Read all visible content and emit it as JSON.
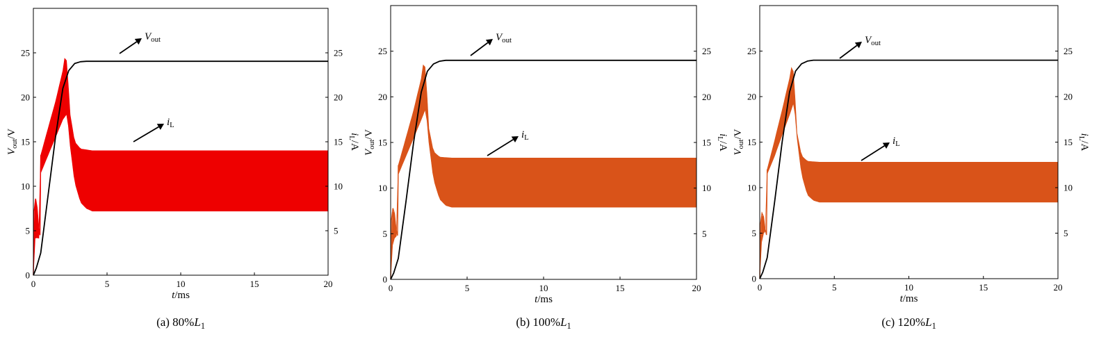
{
  "chart_data": [
    {
      "type": "line",
      "caption": {
        "prefix": "(a) 80%",
        "var": "L",
        "sub": "1"
      },
      "xlabel": {
        "var": "t",
        "unit": "/ms"
      },
      "ylabel_left": {
        "var": "V",
        "sub": "out",
        "unit": "/V"
      },
      "ylabel_right": {
        "var": "i",
        "sub": "L",
        "unit": "/A"
      },
      "xlim": [
        0,
        20
      ],
      "ylim_left": [
        0,
        30
      ],
      "ylim_right": [
        0,
        30
      ],
      "xticks": [
        "0",
        "5",
        "10",
        "15",
        "20"
      ],
      "yticks_left": [
        "0",
        "5",
        "10",
        "15",
        "20",
        "25"
      ],
      "yticks_right": [
        "5",
        "10",
        "15",
        "20",
        "25"
      ],
      "colors": {
        "vout": "#000000",
        "il": "#ee0000"
      },
      "annotations": [
        {
          "var": "V",
          "sub": "out"
        },
        {
          "var": "i",
          "sub": "L"
        }
      ],
      "series": [
        {
          "name": "Vout",
          "x": [
            0,
            0.2,
            0.5,
            1,
            1.5,
            2,
            2.4,
            2.8,
            3.2,
            3.6,
            4,
            20
          ],
          "y": [
            0,
            0.8,
            2.5,
            9,
            15.5,
            21,
            23,
            23.8,
            24,
            24.05,
            24.05,
            24.05
          ]
        },
        {
          "name": "iL_max",
          "x": [
            0,
            0.05,
            0.15,
            0.25,
            0.35,
            0.45,
            0.5,
            1,
            1.5,
            2,
            2.2,
            2.35,
            2.5,
            2.8,
            3.2,
            4,
            20
          ],
          "y": [
            0,
            7.2,
            8.6,
            7.6,
            5.5,
            4.5,
            13.5,
            16.5,
            19.5,
            23,
            25.2,
            22,
            18,
            15,
            14.2,
            14,
            14
          ]
        },
        {
          "name": "iL_min",
          "x": [
            0,
            0.15,
            0.3,
            0.45,
            0.5,
            1,
            1.5,
            2,
            2.3,
            2.5,
            2.8,
            3.2,
            3.6,
            4,
            20
          ],
          "y": [
            0,
            5,
            3.8,
            4.5,
            11.5,
            13.5,
            15.5,
            17.5,
            18.2,
            14.5,
            10.5,
            8.2,
            7.5,
            7.2,
            7.2
          ]
        }
      ]
    },
    {
      "type": "line",
      "caption": {
        "prefix": "(b) 100%",
        "var": "L",
        "sub": "1"
      },
      "xlabel": {
        "var": "t",
        "unit": "/ms"
      },
      "ylabel_left": {
        "var": "V",
        "sub": "out",
        "unit": "/V"
      },
      "ylabel_right": {
        "var": "i",
        "sub": "L",
        "unit": "/A"
      },
      "xlim": [
        0,
        20
      ],
      "ylim_left": [
        0,
        30
      ],
      "ylim_right": [
        0,
        30
      ],
      "xticks": [
        "0",
        "5",
        "10",
        "15",
        "20"
      ],
      "yticks_left": [
        "0",
        "5",
        "10",
        "15",
        "20",
        "25"
      ],
      "yticks_right": [
        "5",
        "10",
        "15",
        "20",
        "25"
      ],
      "colors": {
        "vout": "#000000",
        "il": "#d95319"
      },
      "annotations": [
        {
          "var": "V",
          "sub": "out"
        },
        {
          "var": "i",
          "sub": "L"
        }
      ],
      "series": [
        {
          "name": "Vout",
          "x": [
            0,
            0.2,
            0.5,
            1,
            1.5,
            2,
            2.4,
            2.8,
            3.2,
            3.6,
            4,
            20
          ],
          "y": [
            0,
            0.7,
            2.3,
            8.5,
            15,
            20.5,
            22.8,
            23.6,
            23.9,
            24,
            24,
            24
          ]
        },
        {
          "name": "iL_max",
          "x": [
            0,
            0.05,
            0.15,
            0.25,
            0.35,
            0.45,
            0.5,
            1,
            1.5,
            2,
            2.2,
            2.35,
            2.5,
            2.8,
            3.2,
            4,
            20
          ],
          "y": [
            0,
            6.5,
            7.8,
            7.2,
            5.5,
            4.8,
            12.5,
            15.5,
            18.5,
            22,
            24.4,
            21,
            16.5,
            14,
            13.4,
            13.3,
            13.3
          ]
        },
        {
          "name": "iL_min",
          "x": [
            0,
            0.15,
            0.3,
            0.45,
            0.5,
            1,
            1.5,
            2,
            2.3,
            2.5,
            2.8,
            3.2,
            3.6,
            4,
            20
          ],
          "y": [
            0,
            4.5,
            4.5,
            5,
            11.5,
            13.5,
            15.5,
            17.5,
            18.8,
            15,
            11,
            8.8,
            8.1,
            7.9,
            7.9
          ]
        }
      ]
    },
    {
      "type": "line",
      "caption": {
        "prefix": "(c) 120%",
        "var": "L",
        "sub": "1"
      },
      "xlabel": {
        "var": "t",
        "unit": "/ms"
      },
      "ylabel_left": {
        "var": "V",
        "sub": "out",
        "unit": "/V"
      },
      "ylabel_right": {
        "var": "i",
        "sub": "L",
        "unit": "/A"
      },
      "xlim": [
        0,
        20
      ],
      "ylim_left": [
        0,
        30
      ],
      "ylim_right": [
        0,
        30
      ],
      "xticks": [
        "0",
        "5",
        "10",
        "15",
        "20"
      ],
      "yticks_left": [
        "0",
        "5",
        "10",
        "15",
        "20",
        "25"
      ],
      "yticks_right": [
        "5",
        "10",
        "15",
        "20",
        "25"
      ],
      "colors": {
        "vout": "#000000",
        "il": "#d95319"
      },
      "annotations": [
        {
          "var": "V",
          "sub": "out"
        },
        {
          "var": "i",
          "sub": "L"
        }
      ],
      "series": [
        {
          "name": "Vout",
          "x": [
            0,
            0.2,
            0.5,
            1,
            1.5,
            2,
            2.4,
            2.8,
            3.2,
            3.6,
            4,
            20
          ],
          "y": [
            0,
            0.7,
            2.3,
            8.5,
            15,
            20.5,
            22.8,
            23.6,
            23.9,
            24,
            24,
            24
          ]
        },
        {
          "name": "iL_max",
          "x": [
            0,
            0.05,
            0.15,
            0.25,
            0.35,
            0.45,
            0.5,
            1,
            1.5,
            2,
            2.2,
            2.35,
            2.5,
            2.8,
            3.2,
            4,
            20
          ],
          "y": [
            0,
            6,
            7.2,
            6.8,
            5.5,
            4.8,
            12,
            15.2,
            18.5,
            22,
            23.9,
            20.5,
            16,
            13.5,
            12.9,
            12.8,
            12.8
          ]
        },
        {
          "name": "iL_min",
          "x": [
            0,
            0.15,
            0.3,
            0.45,
            0.5,
            1,
            1.5,
            2,
            2.3,
            2.5,
            2.8,
            3.2,
            3.6,
            4,
            20
          ],
          "y": [
            0,
            4.8,
            5,
            5.5,
            11.5,
            13.5,
            15.8,
            18,
            19.5,
            15.5,
            11.5,
            9.2,
            8.6,
            8.4,
            8.4
          ]
        }
      ]
    }
  ]
}
